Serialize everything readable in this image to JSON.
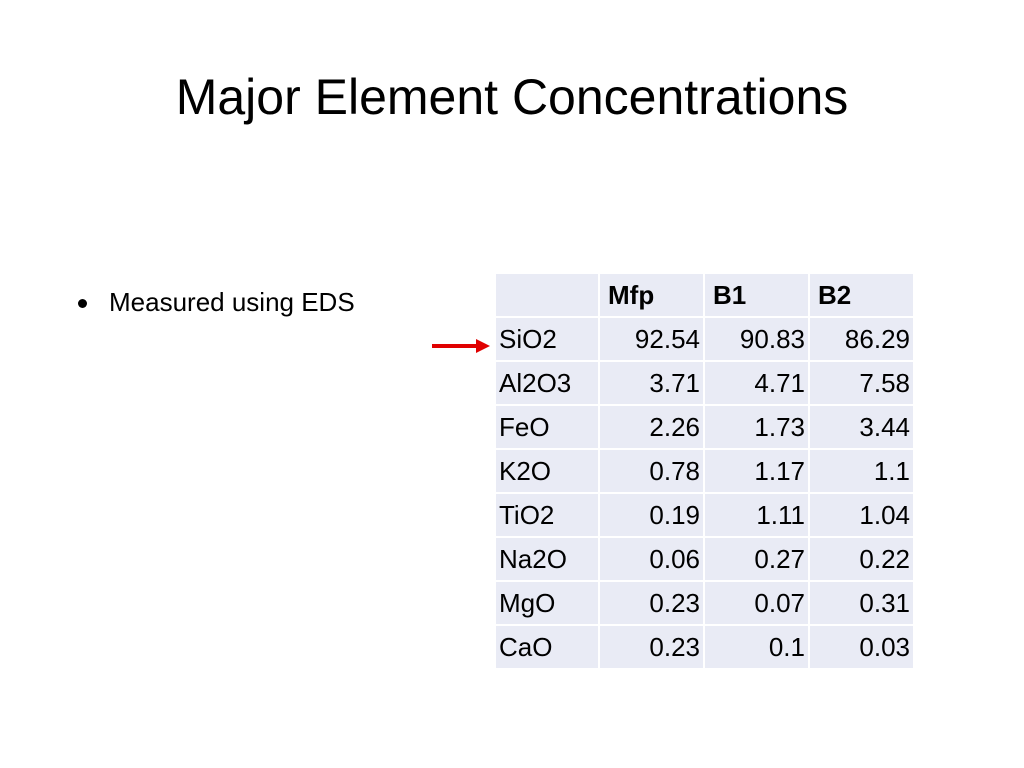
{
  "slide": {
    "title": "Major Element Concentrations",
    "bullets": [
      "Measured using EDS"
    ]
  },
  "table": {
    "columns": [
      "",
      "Mfp",
      "B1",
      "B2"
    ],
    "rows": [
      {
        "label": "SiO2",
        "values": [
          "92.54",
          "90.83",
          "86.29"
        ]
      },
      {
        "label": "Al2O3",
        "values": [
          "3.71",
          "4.71",
          "7.58"
        ]
      },
      {
        "label": "FeO",
        "values": [
          "2.26",
          "1.73",
          "3.44"
        ]
      },
      {
        "label": "K2O",
        "values": [
          "0.78",
          "1.17",
          "1.1"
        ]
      },
      {
        "label": "TiO2",
        "values": [
          "0.19",
          "1.11",
          "1.04"
        ]
      },
      {
        "label": "Na2O",
        "values": [
          "0.06",
          "0.27",
          "0.22"
        ]
      },
      {
        "label": "MgO",
        "values": [
          "0.23",
          "0.07",
          "0.31"
        ]
      },
      {
        "label": "CaO",
        "values": [
          "0.23",
          "0.1",
          "0.03"
        ]
      }
    ]
  },
  "colors": {
    "cell_background": "#e9ebf5",
    "arrow": "#e00000"
  },
  "arrow": {
    "icon": "right-arrow-icon",
    "points_to_row": "SiO2"
  }
}
